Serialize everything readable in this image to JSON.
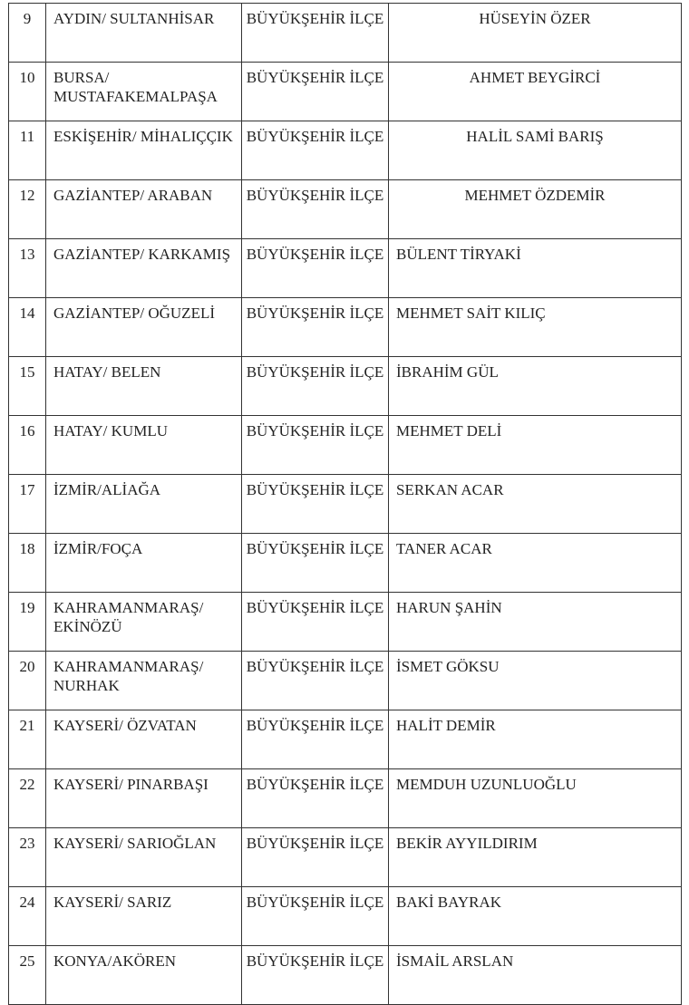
{
  "rows": [
    {
      "no": "9",
      "place": "AYDIN/ SULTANHİSAR",
      "type": "BÜYÜKŞEHİR İLÇE",
      "name": "HÜSEYİN ÖZER",
      "centered": true
    },
    {
      "no": "10",
      "place": "BURSA/ MUSTAFAKEMALPAŞA",
      "type": "BÜYÜKŞEHİR İLÇE",
      "name": "AHMET BEYGİRCİ",
      "centered": true
    },
    {
      "no": "11",
      "place": "ESKİŞEHİR/ MİHALIÇÇIK",
      "type": "BÜYÜKŞEHİR İLÇE",
      "name": "HALİL SAMİ BARIŞ",
      "centered": true
    },
    {
      "no": "12",
      "place": "GAZİANTEP/ ARABAN",
      "type": "BÜYÜKŞEHİR İLÇE",
      "name": "MEHMET ÖZDEMİR",
      "centered": true
    },
    {
      "no": "13",
      "place": "GAZİANTEP/ KARKAMIŞ",
      "type": "BÜYÜKŞEHİR İLÇE",
      "name": "BÜLENT TİRYAKİ",
      "centered": false
    },
    {
      "no": "14",
      "place": "GAZİANTEP/ OĞUZELİ",
      "type": "BÜYÜKŞEHİR İLÇE",
      "name": "MEHMET SAİT KILIÇ",
      "centered": false
    },
    {
      "no": "15",
      "place": "HATAY/ BELEN",
      "type": "BÜYÜKŞEHİR İLÇE",
      "name": "İBRAHİM GÜL",
      "centered": false
    },
    {
      "no": "16",
      "place": "HATAY/ KUMLU",
      "type": "BÜYÜKŞEHİR İLÇE",
      "name": "MEHMET DELİ",
      "centered": false
    },
    {
      "no": "17",
      "place": "İZMİR/ALİAĞA",
      "type": "BÜYÜKŞEHİR İLÇE",
      "name": "SERKAN ACAR",
      "centered": false
    },
    {
      "no": "18",
      "place": "İZMİR/FOÇA",
      "type": "BÜYÜKŞEHİR İLÇE",
      "name": "TANER ACAR",
      "centered": false
    },
    {
      "no": "19",
      "place": "KAHRAMANMARAŞ/ EKİNÖZÜ",
      "type": "BÜYÜKŞEHİR İLÇE",
      "name": "HARUN ŞAHİN",
      "centered": false
    },
    {
      "no": "20",
      "place": "KAHRAMANMARAŞ/ NURHAK",
      "type": "BÜYÜKŞEHİR İLÇE",
      "name": "İSMET GÖKSU",
      "centered": false
    },
    {
      "no": "21",
      "place": "KAYSERİ/ ÖZVATAN",
      "type": "BÜYÜKŞEHİR İLÇE",
      "name": "HALİT DEMİR",
      "centered": false
    },
    {
      "no": "22",
      "place": "KAYSERİ/ PINARBAŞI",
      "type": "BÜYÜKŞEHİR İLÇE",
      "name": "MEMDUH UZUNLUOĞLU",
      "centered": false
    },
    {
      "no": "23",
      "place": "KAYSERİ/ SARIOĞLAN",
      "type": "BÜYÜKŞEHİR İLÇE",
      "name": "BEKİR AYYILDIRIM",
      "centered": false
    },
    {
      "no": "24",
      "place": "KAYSERİ/ SARIZ",
      "type": "BÜYÜKŞEHİR İLÇE",
      "name": "BAKİ BAYRAK",
      "centered": false
    },
    {
      "no": "25",
      "place": "KONYA/AKÖREN",
      "type": "BÜYÜKŞEHİR İLÇE",
      "name": "İSMAİL ARSLAN",
      "centered": false
    }
  ]
}
